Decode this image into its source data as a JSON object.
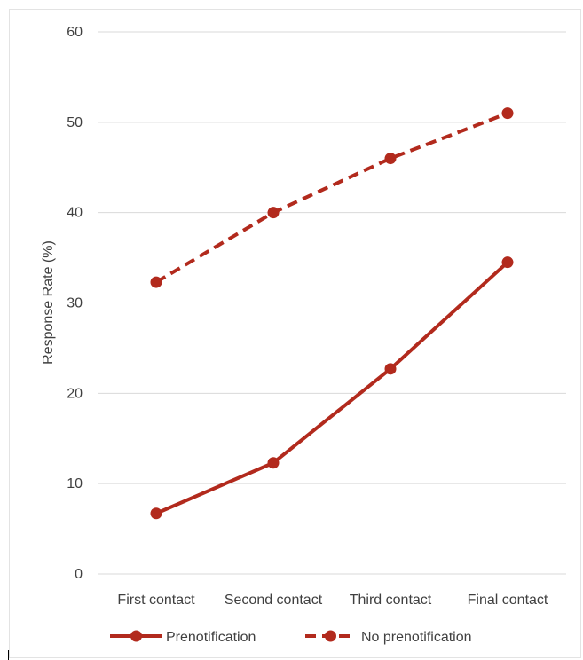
{
  "chart_data": {
    "type": "line",
    "title": "",
    "xlabel": "",
    "ylabel": "Response Rate (%)",
    "ylim": [
      0,
      60
    ],
    "yticks": [
      0,
      10,
      20,
      30,
      40,
      50,
      60
    ],
    "categories": [
      "First contact",
      "Second contact",
      "Third contact",
      "Final contact"
    ],
    "grid": "horizontal",
    "legend_position": "bottom",
    "series": [
      {
        "name": "Prenotification",
        "values": [
          6.7,
          12.3,
          22.7,
          34.5
        ],
        "color": "#b22a1d",
        "line_style": "solid",
        "marker": "circle"
      },
      {
        "name": "No prenotification",
        "values": [
          32.3,
          40.0,
          46.0,
          51.0
        ],
        "color": "#b22a1d",
        "line_style": "dashed",
        "marker": "circle"
      }
    ]
  }
}
